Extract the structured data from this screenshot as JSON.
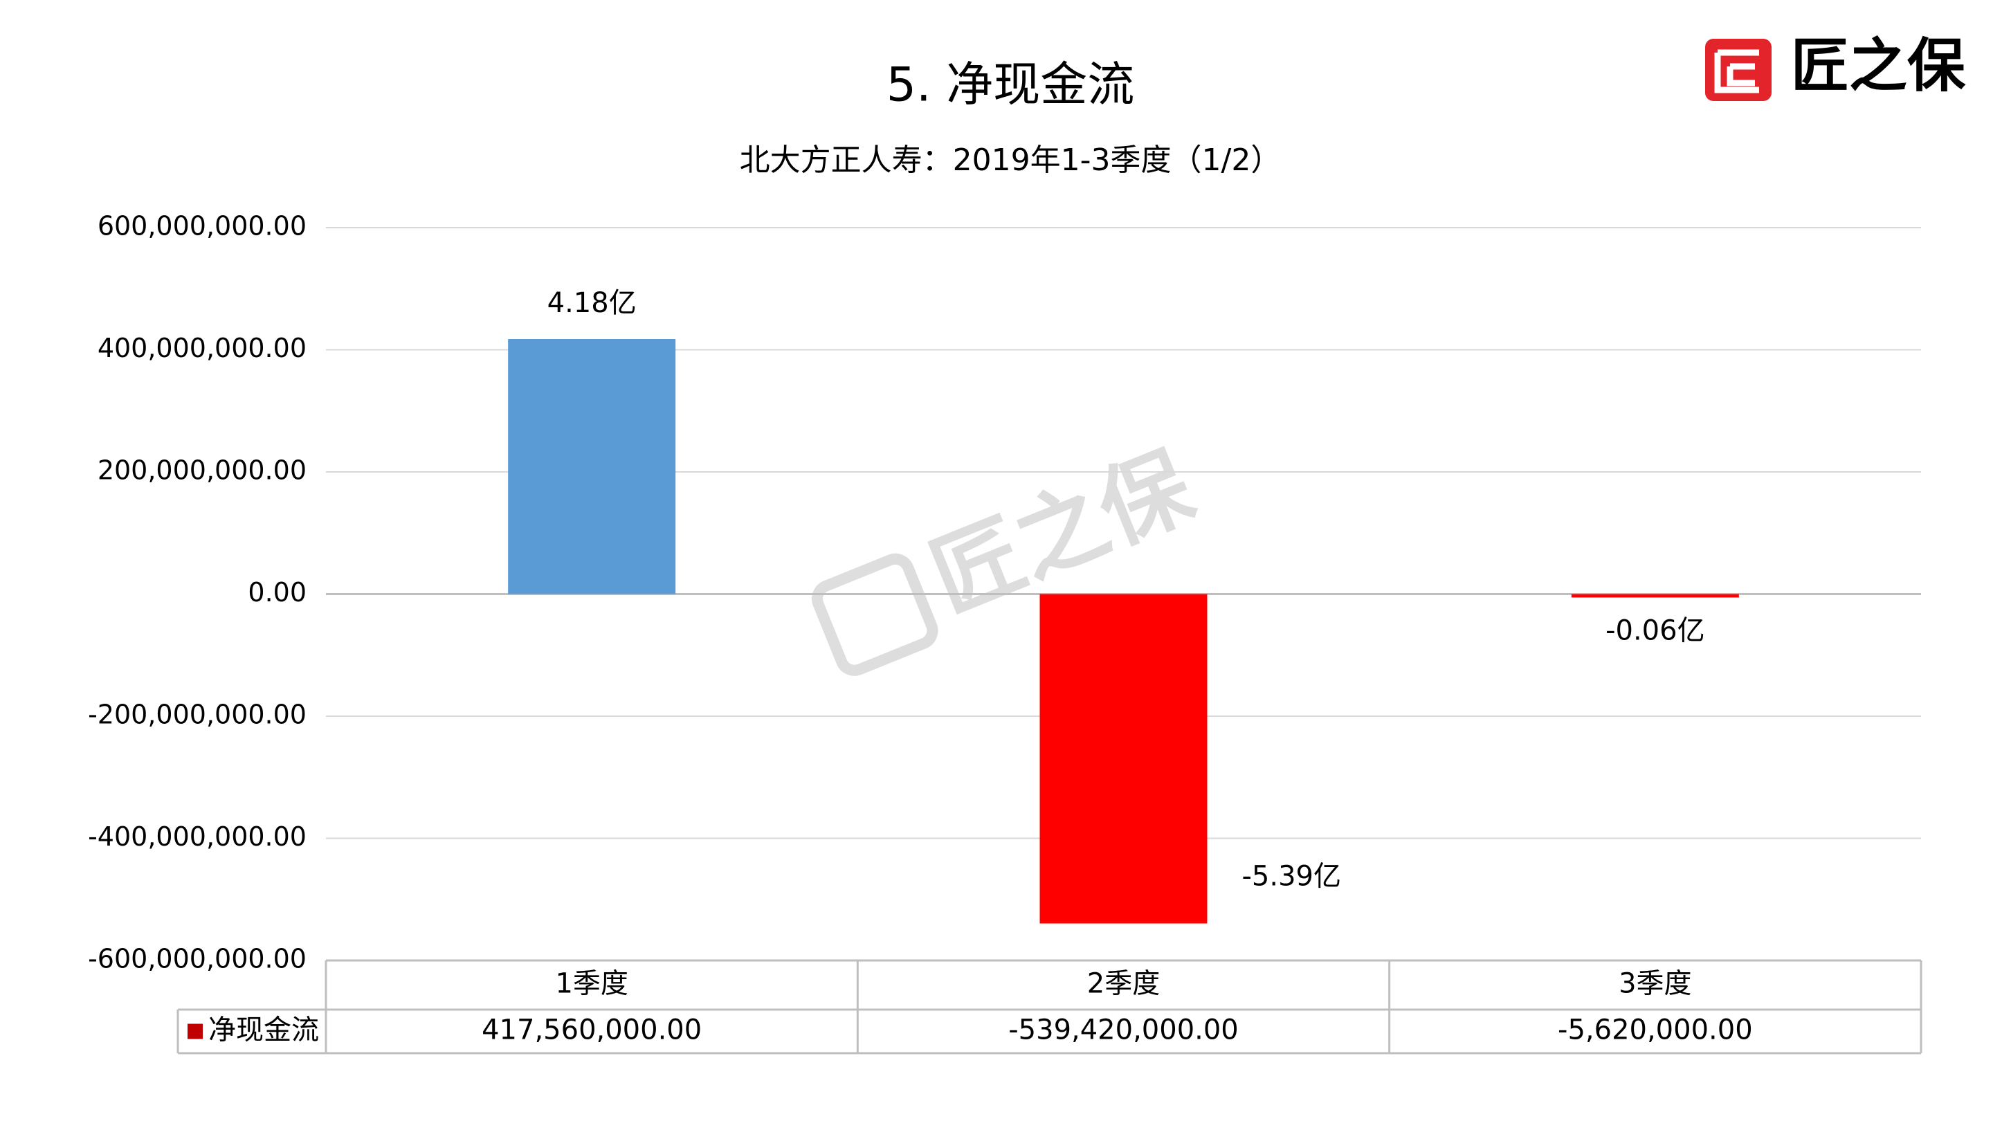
{
  "chart_data": {
    "type": "bar",
    "title": "5. 净现金流",
    "subtitle": "北大方正人寿：2019年1-3季度（1/2）",
    "logo": "匠之保",
    "watermark": "匠之保",
    "categories": [
      "1季度",
      "2季度",
      "3季度"
    ],
    "series": [
      {
        "name": "净现金流",
        "color": "#c00000",
        "values": [
          417560000,
          -539420000,
          -5620000
        ],
        "value_labels": [
          "4.18亿",
          "-5.39亿",
          "-0.06亿"
        ],
        "table_labels": [
          "417,560,000.00",
          "-539,420,000.00",
          "-5,620,000.00"
        ],
        "point_colors": [
          "#5b9bd5",
          "#ff0000",
          "#ff0000"
        ]
      }
    ],
    "ylim": [
      -600000000,
      600000000
    ],
    "yticks": [
      {
        "value": -600000000,
        "label": "-600,000,000.00"
      },
      {
        "value": -400000000,
        "label": "-400,000,000.00"
      },
      {
        "value": -200000000,
        "label": "-200,000,000.00"
      },
      {
        "value": 0,
        "label": "0.00"
      },
      {
        "value": 200000000,
        "label": "200,000,000.00"
      },
      {
        "value": 400000000,
        "label": "400,000,000.00"
      },
      {
        "value": 600000000,
        "label": "600,000,000.00"
      }
    ],
    "grid": true
  }
}
